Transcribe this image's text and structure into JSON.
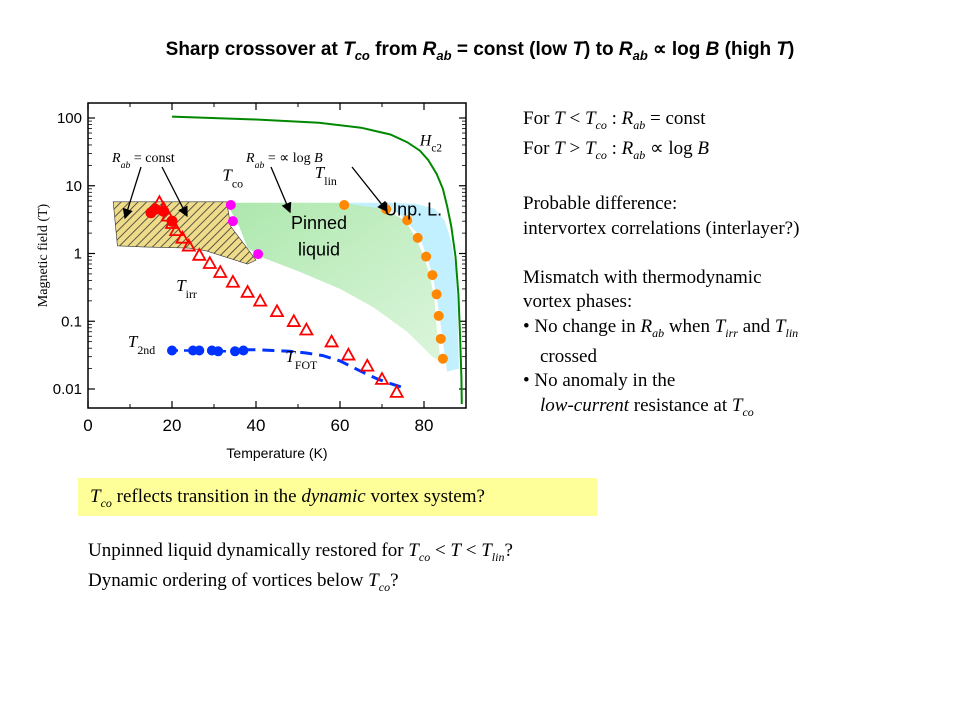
{
  "title": {
    "p1": "Sharp crossover at ",
    "t": "T",
    "co": "co",
    "p2": "  from ",
    "r1": "R",
    "ab1": "ab",
    "p3": " = const (low ",
    "t2": "T",
    "p4": ") to ",
    "r2": "R",
    "ab2": "ab",
    "p5": " ∝ log ",
    "b": "B",
    "p6": " (high ",
    "t3": "T",
    "p7": ")"
  },
  "chart_data": {
    "type": "scatter",
    "xlabel": "Temperature (K)",
    "ylabel": "Magnetic field (T)",
    "xlim": [
      0,
      95
    ],
    "ylim": [
      0.005,
      150
    ],
    "y_scale": "log",
    "x_ticks": [
      "0",
      "20",
      "40",
      "60",
      "80"
    ],
    "y_ticks": [
      "0.01",
      "0.1",
      "1",
      "10",
      "100"
    ],
    "x_tick_values": [
      0,
      20,
      40,
      60,
      80
    ],
    "y_tick_values": [
      0.01,
      0.1,
      1,
      10,
      100
    ],
    "colors": {
      "red": "#ff0000",
      "blue": "#0033ff",
      "magenta": "#ff00ff",
      "orange": "#ff8800",
      "green": "#008800",
      "fill_green": "#a8e6a8",
      "fill_cyan": "#c2f0ff"
    },
    "series": [
      {
        "name": "Hc2",
        "label_main": "H",
        "label_sub": "c2",
        "style": "line",
        "color": "#008800",
        "x": [
          20,
          40,
          55,
          65,
          72,
          76,
          79,
          81,
          83,
          84.5,
          85.5,
          86.5,
          87.5,
          88.2,
          88.6,
          88.9,
          89.0
        ],
        "y": [
          105,
          95,
          85,
          72,
          57,
          44,
          33,
          24,
          15,
          9,
          5,
          2.5,
          0.9,
          0.25,
          0.06,
          0.015,
          0.006
        ]
      },
      {
        "name": "Tco",
        "label_main": "T",
        "label_sub": "co",
        "style": "marker-circle",
        "color": "#ff00ff",
        "x": [
          34,
          34.5,
          40.5
        ],
        "y": [
          5.2,
          3.0,
          0.98
        ]
      },
      {
        "name": "Tlin",
        "label_main": "T",
        "label_sub": "lin",
        "style": "marker-circle",
        "color": "#ff8800",
        "x": [
          61,
          71,
          76,
          78.5,
          80.5,
          82,
          83,
          83.5,
          84,
          84.5
        ],
        "y": [
          5.2,
          4.5,
          3.1,
          1.7,
          0.9,
          0.48,
          0.25,
          0.12,
          0.055,
          0.028
        ]
      },
      {
        "name": "Tirr",
        "label_main": "T",
        "label_sub": "irr",
        "style": "marker-triangle",
        "color": "#ff0000",
        "x": [
          17,
          18,
          19,
          20,
          21,
          22.5,
          24,
          26.5,
          29,
          31.5,
          34.5,
          38,
          41,
          45,
          49,
          52,
          58,
          62,
          66.5,
          70,
          73.5
        ],
        "y": [
          5.7,
          4.6,
          3.6,
          2.8,
          2.2,
          1.7,
          1.3,
          0.95,
          0.72,
          0.53,
          0.38,
          0.27,
          0.2,
          0.14,
          0.1,
          0.075,
          0.05,
          0.032,
          0.022,
          0.014,
          0.009
        ]
      },
      {
        "name": "Rab_const",
        "style": "marker-circle",
        "color": "#ff0000",
        "x": [
          15,
          16,
          18,
          20
        ],
        "y": [
          4.0,
          4.5,
          4.2,
          3.0
        ]
      },
      {
        "name": "T2nd",
        "label_main": "T",
        "label_sub": "2nd",
        "style": "marker-circle",
        "color": "#0033ff",
        "x": [
          20,
          25,
          26.5,
          29.5,
          31,
          35,
          37
        ],
        "y": [
          0.037,
          0.037,
          0.037,
          0.037,
          0.036,
          0.036,
          0.037
        ]
      },
      {
        "name": "TFOT",
        "label_main": "T",
        "label_sub": "FOT",
        "style": "dashed-line",
        "color": "#0033ff",
        "x": [
          37,
          40,
          44,
          48,
          52,
          56,
          60,
          63,
          66,
          69,
          72,
          74,
          76
        ],
        "y": [
          0.038,
          0.038,
          0.037,
          0.036,
          0.034,
          0.031,
          0.026,
          0.021,
          0.017,
          0.014,
          0.012,
          0.011,
          0.01
        ]
      }
    ],
    "regions": [
      {
        "name": "Pinned liquid",
        "label": "Pinned\nliquid",
        "color": "#a8e6a8"
      },
      {
        "name": "Unpinned liquid",
        "label": "Unp. L.",
        "color": "#c2f0ff"
      }
    ],
    "annotations": [
      {
        "name": "rab-const",
        "r": "R",
        "sub": "ab",
        "rest": " = const"
      },
      {
        "name": "rab-log",
        "r": "R",
        "sub": "ab",
        "rest": " = ∝ log ",
        "b": "B"
      }
    ]
  },
  "right_text": {
    "l1": {
      "a": "For ",
      "t": "T",
      "b": " < ",
      "tc": "T",
      "tcs": "co",
      "c": " : ",
      "r": "R",
      "rs": "ab",
      "d": " = const"
    },
    "l2": {
      "a": "For ",
      "t": "T",
      "b": " > ",
      "tc": "T",
      "tcs": "co",
      "c": " : ",
      "r": "R",
      "rs": "ab",
      "d": " ∝ log ",
      "bb": "B"
    },
    "l3": "Probable difference:",
    "l4": "intervortex correlations (interlayer?)",
    "l5": "Mismatch with thermodynamic",
    "l6": "vortex phases:",
    "l7": {
      "a": "• No change in ",
      "r": "R",
      "rs": "ab",
      "b": " when ",
      "t1": "T",
      "t1s": "irr",
      "c": " and ",
      "t2": "T",
      "t2s": "lin"
    },
    "l8": "crossed",
    "l9": "• No anomaly in the",
    "l10": {
      "a": "low-current",
      "b": " resistance at ",
      "t": "T",
      "ts": "co"
    }
  },
  "highlight": {
    "t": "T",
    "ts": "co",
    "a": " reflects transition in the ",
    "i": "dynamic",
    "b": " vortex system?"
  },
  "bottom_text": {
    "l1": {
      "a": "Unpinned liquid dynamically restored for ",
      "t1": "T",
      "t1s": "co",
      "b": " < ",
      "t": "T",
      "c": " < ",
      "t2": "T",
      "t2s": "lin",
      "d": "?"
    },
    "l2": {
      "a": "Dynamic ordering of vortices below ",
      "t": "T",
      "ts": "co",
      "b": "?"
    }
  }
}
